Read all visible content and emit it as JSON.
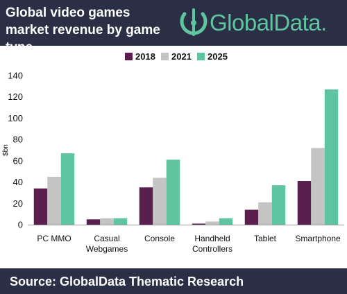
{
  "header": {
    "title": "Global video games market revenue by game type",
    "logo_text": "GlobalData."
  },
  "footer": {
    "source": "Source:  GlobalData Thematic Research"
  },
  "colors": {
    "header_bg": "#2b2f45",
    "brand_green": "#5fc4a0",
    "series_2018": "#5a1f4e",
    "series_2021": "#c4c4c4",
    "series_2025": "#5fc4a0"
  },
  "chart_data": {
    "type": "bar",
    "title": "",
    "ylabel": "$bn",
    "xlabel": "",
    "ylim": [
      0,
      140
    ],
    "yticks": [
      0,
      20,
      40,
      60,
      80,
      100,
      120,
      140
    ],
    "grid": false,
    "legend_position": "top-center",
    "categories": [
      [
        "PC MMO"
      ],
      [
        "Casual",
        "Webgames"
      ],
      [
        "Console"
      ],
      [
        "Handheld",
        "Controllers"
      ],
      [
        "Tablet"
      ],
      [
        "Smartphone"
      ]
    ],
    "series": [
      {
        "name": "2018",
        "color": "#5a1f4e",
        "values": [
          34,
          5,
          35,
          1,
          14,
          41
        ]
      },
      {
        "name": "2021",
        "color": "#c4c4c4",
        "values": [
          45,
          6,
          44,
          3,
          21,
          72
        ]
      },
      {
        "name": "2025",
        "color": "#5fc4a0",
        "values": [
          67,
          6,
          61,
          6,
          37,
          127
        ]
      }
    ]
  }
}
